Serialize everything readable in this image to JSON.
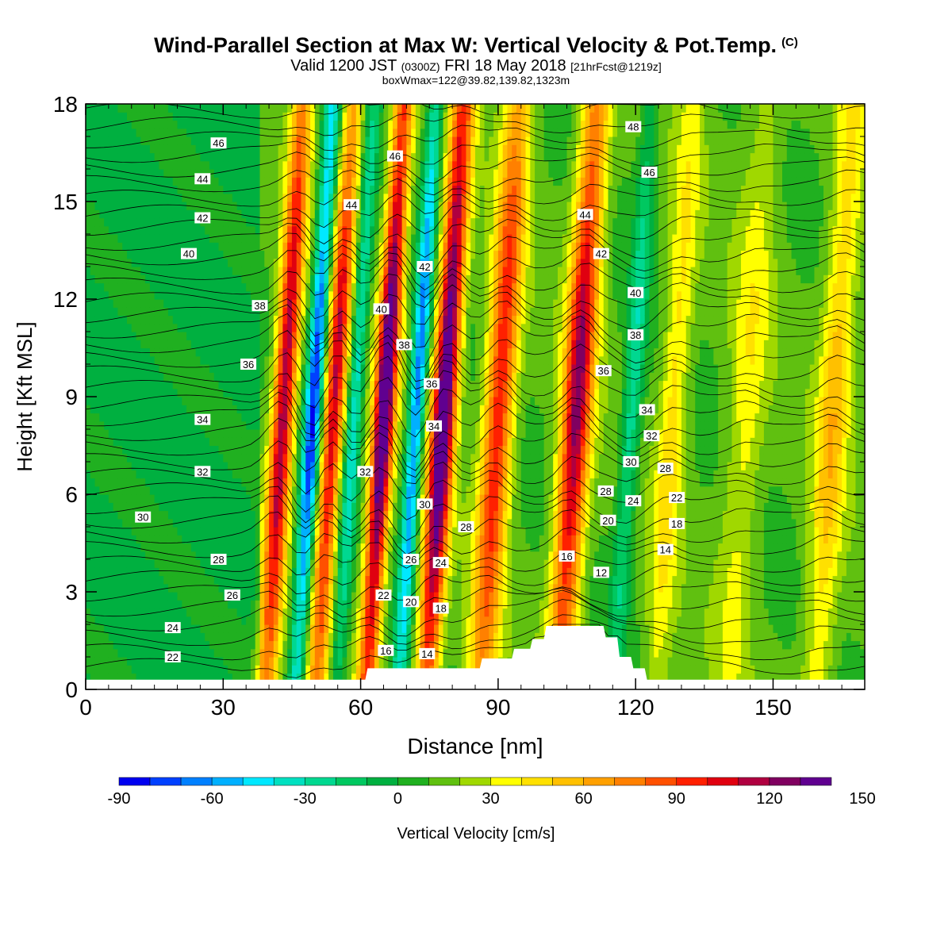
{
  "title": {
    "main": "Wind-Parallel Section at Max W: Vertical Velocity & Pot.Temp.",
    "copyright": "(C)",
    "valid_prefix": "Valid 1200 JST",
    "valid_utc": "(0300Z)",
    "valid_date": "FRI 18 May 2018",
    "forecast": "[21hrFcst@1219z]",
    "boxinfo": "boxWmax=122@39.82,139.82,1323m"
  },
  "chart_data": {
    "type": "heatmap",
    "xlabel": "Distance [nm]",
    "ylabel": "Height [Kft MSL]",
    "xlim": [
      0,
      170
    ],
    "ylim": [
      0,
      18
    ],
    "x_ticks": [
      0,
      30,
      60,
      90,
      120,
      150
    ],
    "y_ticks": [
      0,
      3,
      6,
      9,
      12,
      15,
      18
    ],
    "colorbar": {
      "label": "Vertical Velocity [cm/s]",
      "ticks": [
        -90,
        -60,
        -30,
        0,
        30,
        60,
        90,
        120,
        150
      ],
      "min": -90,
      "step": 10,
      "colors": [
        "#0000f0",
        "#0040ff",
        "#0080ff",
        "#00b0ff",
        "#00e8ff",
        "#00e0c0",
        "#00d890",
        "#00c860",
        "#00b040",
        "#20b020",
        "#60c010",
        "#a0d800",
        "#ffff00",
        "#ffe000",
        "#ffc000",
        "#ffa000",
        "#ff8000",
        "#ff5000",
        "#ff2000",
        "#e00010",
        "#b00040",
        "#800060",
        "#600090"
      ]
    },
    "velocity_features": [
      {
        "name": "updraft",
        "x": 42,
        "ztop": 14,
        "peak": 110,
        "width": 2.4
      },
      {
        "name": "downdraft",
        "x": 48.5,
        "ztop": 14,
        "peak": -90,
        "width": 1.8
      },
      {
        "name": "updraft",
        "x": 53,
        "ztop": 14,
        "peak": 100,
        "width": 2.2
      },
      {
        "name": "downdraft",
        "x": 57.5,
        "ztop": 14,
        "peak": -50,
        "width": 1.6
      },
      {
        "name": "updraft",
        "x": 64,
        "ztop": 14,
        "peak": 140,
        "width": 2.3
      },
      {
        "name": "downdraft",
        "x": 71,
        "ztop": 14,
        "peak": -80,
        "width": 1.7
      },
      {
        "name": "updraft",
        "x": 77,
        "ztop": 14,
        "peak": 140,
        "width": 2.6
      },
      {
        "name": "updraft",
        "x": 89,
        "ztop": 15,
        "peak": 90,
        "width": 3.2
      },
      {
        "name": "updraft",
        "x": 106,
        "ztop": 15,
        "peak": 110,
        "width": 3.2
      },
      {
        "name": "downdraft",
        "x": 118,
        "ztop": 14,
        "peak": -40,
        "width": 2.0
      },
      {
        "name": "updraft",
        "x": 127,
        "ztop": 14,
        "peak": 35,
        "width": 3.0
      },
      {
        "name": "updraft",
        "x": 143,
        "ztop": 16,
        "peak": 25,
        "width": 4.0
      },
      {
        "name": "updraft",
        "x": 162,
        "ztop": 14,
        "peak": 45,
        "width": 3.5
      }
    ],
    "terrain_kft": [
      {
        "x": 0,
        "z": 0.3
      },
      {
        "x": 61,
        "z": 0.3
      },
      {
        "x": 61.5,
        "z": 0.65
      },
      {
        "x": 86,
        "z": 0.65
      },
      {
        "x": 86.5,
        "z": 0.95
      },
      {
        "x": 93,
        "z": 0.95
      },
      {
        "x": 93.5,
        "z": 1.25
      },
      {
        "x": 97,
        "z": 1.25
      },
      {
        "x": 97.5,
        "z": 1.55
      },
      {
        "x": 100,
        "z": 1.55
      },
      {
        "x": 100.5,
        "z": 1.95
      },
      {
        "x": 113,
        "z": 1.95
      },
      {
        "x": 113.5,
        "z": 1.6
      },
      {
        "x": 116,
        "z": 1.6
      },
      {
        "x": 116.5,
        "z": 1.0
      },
      {
        "x": 119,
        "z": 1.0
      },
      {
        "x": 119.5,
        "z": 0.65
      },
      {
        "x": 122,
        "z": 0.65
      },
      {
        "x": 122.5,
        "z": 0.3
      },
      {
        "x": 170,
        "z": 0.3
      }
    ],
    "theta_labels": [
      {
        "text": "46",
        "x": 29,
        "z": 16.8
      },
      {
        "text": "44",
        "x": 25.5,
        "z": 15.7
      },
      {
        "text": "42",
        "x": 25.5,
        "z": 14.5
      },
      {
        "text": "40",
        "x": 22.5,
        "z": 13.4
      },
      {
        "text": "38",
        "x": 38,
        "z": 11.8
      },
      {
        "text": "36",
        "x": 35.5,
        "z": 10.0
      },
      {
        "text": "34",
        "x": 25.5,
        "z": 8.3
      },
      {
        "text": "32",
        "x": 25.5,
        "z": 6.7
      },
      {
        "text": "30",
        "x": 12.5,
        "z": 5.3
      },
      {
        "text": "28",
        "x": 29,
        "z": 4.0
      },
      {
        "text": "26",
        "x": 32,
        "z": 2.9
      },
      {
        "text": "24",
        "x": 19,
        "z": 1.9
      },
      {
        "text": "22",
        "x": 19,
        "z": 1.0
      },
      {
        "text": "46",
        "x": 67.5,
        "z": 16.4
      },
      {
        "text": "44",
        "x": 58,
        "z": 14.9
      },
      {
        "text": "42",
        "x": 74,
        "z": 13.0
      },
      {
        "text": "40",
        "x": 64.5,
        "z": 11.7
      },
      {
        "text": "38",
        "x": 69.5,
        "z": 10.6
      },
      {
        "text": "36",
        "x": 75.5,
        "z": 9.4
      },
      {
        "text": "34",
        "x": 76,
        "z": 8.1
      },
      {
        "text": "32",
        "x": 61,
        "z": 6.7
      },
      {
        "text": "30",
        "x": 74,
        "z": 5.7
      },
      {
        "text": "28",
        "x": 83,
        "z": 5.0
      },
      {
        "text": "26",
        "x": 71,
        "z": 4.0
      },
      {
        "text": "24",
        "x": 77.5,
        "z": 3.9
      },
      {
        "text": "22",
        "x": 65,
        "z": 2.9
      },
      {
        "text": "20",
        "x": 71,
        "z": 2.7
      },
      {
        "text": "18",
        "x": 77.5,
        "z": 2.5
      },
      {
        "text": "16",
        "x": 65.5,
        "z": 1.2
      },
      {
        "text": "14",
        "x": 74.5,
        "z": 1.1
      },
      {
        "text": "48",
        "x": 119.5,
        "z": 17.3
      },
      {
        "text": "46",
        "x": 123,
        "z": 15.9
      },
      {
        "text": "44",
        "x": 109,
        "z": 14.6
      },
      {
        "text": "42",
        "x": 112.5,
        "z": 13.4
      },
      {
        "text": "40",
        "x": 120,
        "z": 12.2
      },
      {
        "text": "38",
        "x": 120,
        "z": 10.9
      },
      {
        "text": "36",
        "x": 113,
        "z": 9.8
      },
      {
        "text": "34",
        "x": 122.5,
        "z": 8.6
      },
      {
        "text": "32",
        "x": 123.5,
        "z": 7.8
      },
      {
        "text": "30",
        "x": 119,
        "z": 7.0
      },
      {
        "text": "28",
        "x": 126.5,
        "z": 6.8
      },
      {
        "text": "28",
        "x": 113.5,
        "z": 6.1
      },
      {
        "text": "24",
        "x": 119.5,
        "z": 5.8
      },
      {
        "text": "22",
        "x": 129,
        "z": 5.9
      },
      {
        "text": "20",
        "x": 114,
        "z": 5.2
      },
      {
        "text": "18",
        "x": 129,
        "z": 5.1
      },
      {
        "text": "16",
        "x": 105,
        "z": 4.1
      },
      {
        "text": "14",
        "x": 126.5,
        "z": 4.3
      },
      {
        "text": "12",
        "x": 112.5,
        "z": 3.6
      }
    ]
  }
}
